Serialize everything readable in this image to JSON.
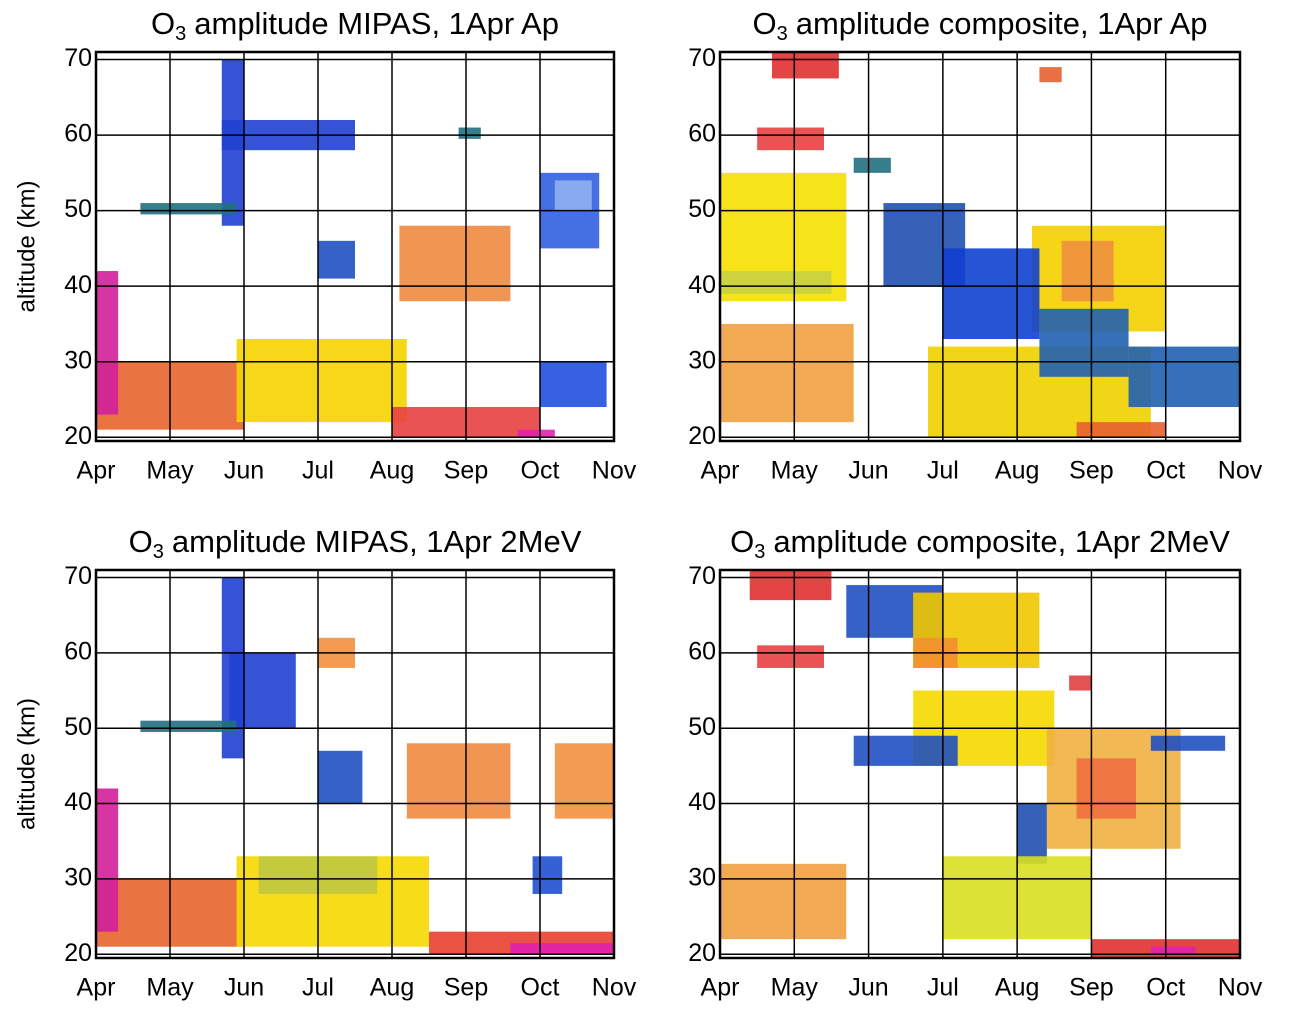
{
  "chart_data": [
    {
      "type": "heatmap",
      "title": [
        "O",
        "3",
        "amplitude MIPAS, 1Apr Ap"
      ],
      "ylabel": "altitude (km)",
      "xlim": [
        0,
        7
      ],
      "xticks": [
        {
          "value": 0,
          "label": "Apr"
        },
        {
          "value": 1,
          "label": "May"
        },
        {
          "value": 2,
          "label": "Jun"
        },
        {
          "value": 3,
          "label": "Jul"
        },
        {
          "value": 4,
          "label": "Aug"
        },
        {
          "value": 5,
          "label": "Sep"
        },
        {
          "value": 6,
          "label": "Oct"
        },
        {
          "value": 7,
          "label": "Nov"
        }
      ],
      "ylim": [
        19.5,
        71
      ],
      "yticks": [
        20,
        30,
        40,
        50,
        60,
        70
      ],
      "grid": true,
      "patches": [
        {
          "x": [
            0,
            2
          ],
          "y": [
            21,
            30
          ],
          "color": "#e8642e"
        },
        {
          "x": [
            1.9,
            4.2
          ],
          "y": [
            22,
            33
          ],
          "color": "#f5d400"
        },
        {
          "x": [
            0,
            0.3
          ],
          "y": [
            23,
            42
          ],
          "color": "#d0209a"
        },
        {
          "x": [
            4,
            6
          ],
          "y": [
            20,
            24
          ],
          "color": "#e84040"
        },
        {
          "x": [
            5.7,
            6.2
          ],
          "y": [
            20,
            21
          ],
          "color": "#e020b0"
        },
        {
          "x": [
            4.1,
            5.6
          ],
          "y": [
            38,
            48
          ],
          "color": "#f08a40"
        },
        {
          "x": [
            1.7,
            2
          ],
          "y": [
            48,
            70
          ],
          "color": "#2040d0"
        },
        {
          "x": [
            1.7,
            3.5
          ],
          "y": [
            58,
            62
          ],
          "color": "#2040d0"
        },
        {
          "x": [
            0.6,
            1.9
          ],
          "y": [
            49.5,
            51
          ],
          "color": "#207080"
        },
        {
          "x": [
            6,
            6.8
          ],
          "y": [
            45,
            55
          ],
          "color": "#3060e0"
        },
        {
          "x": [
            6.2,
            6.7
          ],
          "y": [
            50,
            54
          ],
          "color": "#90b0f0"
        },
        {
          "x": [
            6,
            6.9
          ],
          "y": [
            24,
            30
          ],
          "color": "#2050e0"
        },
        {
          "x": [
            3,
            3.5
          ],
          "y": [
            41,
            46
          ],
          "color": "#2050c0"
        },
        {
          "x": [
            4.9,
            5.2
          ],
          "y": [
            59.5,
            61
          ],
          "color": "#207080"
        }
      ]
    },
    {
      "type": "heatmap",
      "title": [
        "O",
        "3",
        "amplitude composite, 1Apr Ap"
      ],
      "xlim": [
        0,
        7
      ],
      "xticks": [
        {
          "value": 0,
          "label": "Apr"
        },
        {
          "value": 1,
          "label": "May"
        },
        {
          "value": 2,
          "label": "Jun"
        },
        {
          "value": 3,
          "label": "Jul"
        },
        {
          "value": 4,
          "label": "Aug"
        },
        {
          "value": 5,
          "label": "Sep"
        },
        {
          "value": 6,
          "label": "Oct"
        },
        {
          "value": 7,
          "label": "Nov"
        }
      ],
      "ylim": [
        19.5,
        71
      ],
      "yticks": [
        20,
        30,
        40,
        50,
        60,
        70
      ],
      "grid": true,
      "patches": [
        {
          "x": [
            0.7,
            1.6
          ],
          "y": [
            67.5,
            71
          ],
          "color": "#e03030"
        },
        {
          "x": [
            0.5,
            1.4
          ],
          "y": [
            58,
            61
          ],
          "color": "#e84040"
        },
        {
          "x": [
            4.3,
            4.6
          ],
          "y": [
            67,
            69
          ],
          "color": "#e86030"
        },
        {
          "x": [
            0,
            1.7
          ],
          "y": [
            38,
            55
          ],
          "color": "#f5e000"
        },
        {
          "x": [
            0,
            1.5
          ],
          "y": [
            39,
            42
          ],
          "color": "#c8d040"
        },
        {
          "x": [
            0,
            1.8
          ],
          "y": [
            22,
            35
          ],
          "color": "#f0a040"
        },
        {
          "x": [
            2.8,
            5.8
          ],
          "y": [
            20,
            32
          ],
          "color": "#f0d000"
        },
        {
          "x": [
            4.8,
            6
          ],
          "y": [
            20,
            22
          ],
          "color": "#e86030"
        },
        {
          "x": [
            4.2,
            6
          ],
          "y": [
            34,
            48
          ],
          "color": "#f5d000"
        },
        {
          "x": [
            4.6,
            5.3
          ],
          "y": [
            38,
            46
          ],
          "color": "#f09040"
        },
        {
          "x": [
            2.2,
            3.3
          ],
          "y": [
            40,
            51
          ],
          "color": "#2050b0"
        },
        {
          "x": [
            3,
            4.3
          ],
          "y": [
            33,
            45
          ],
          "color": "#1040d0"
        },
        {
          "x": [
            4.3,
            5.5
          ],
          "y": [
            28,
            37
          ],
          "color": "#2060b0"
        },
        {
          "x": [
            5.5,
            7
          ],
          "y": [
            24,
            32
          ],
          "color": "#2060b0"
        },
        {
          "x": [
            1.8,
            2.3
          ],
          "y": [
            55,
            57
          ],
          "color": "#207080"
        }
      ]
    },
    {
      "type": "heatmap",
      "title": [
        "O",
        "3",
        "amplitude MIPAS, 1Apr 2MeV"
      ],
      "ylabel": "altitude (km)",
      "xlim": [
        0,
        7
      ],
      "xticks": [
        {
          "value": 0,
          "label": "Apr"
        },
        {
          "value": 1,
          "label": "May"
        },
        {
          "value": 2,
          "label": "Jun"
        },
        {
          "value": 3,
          "label": "Jul"
        },
        {
          "value": 4,
          "label": "Aug"
        },
        {
          "value": 5,
          "label": "Sep"
        },
        {
          "value": 6,
          "label": "Oct"
        },
        {
          "value": 7,
          "label": "Nov"
        }
      ],
      "ylim": [
        19.5,
        71
      ],
      "yticks": [
        20,
        30,
        40,
        50,
        60,
        70
      ],
      "grid": true,
      "patches": [
        {
          "x": [
            0,
            2
          ],
          "y": [
            21,
            30
          ],
          "color": "#e8642e"
        },
        {
          "x": [
            1.9,
            4.5
          ],
          "y": [
            21,
            33
          ],
          "color": "#f5d800"
        },
        {
          "x": [
            2.2,
            3.8
          ],
          "y": [
            28,
            33
          ],
          "color": "#c0c840"
        },
        {
          "x": [
            0,
            0.3
          ],
          "y": [
            23,
            42
          ],
          "color": "#d0209a"
        },
        {
          "x": [
            4.5,
            7
          ],
          "y": [
            20,
            23
          ],
          "color": "#e84030"
        },
        {
          "x": [
            5.6,
            7
          ],
          "y": [
            20,
            21.5
          ],
          "color": "#e020b0"
        },
        {
          "x": [
            4.2,
            5.6
          ],
          "y": [
            38,
            48
          ],
          "color": "#f08a40"
        },
        {
          "x": [
            1.7,
            2
          ],
          "y": [
            46,
            70
          ],
          "color": "#2040d0"
        },
        {
          "x": [
            1.8,
            2.7
          ],
          "y": [
            50,
            60
          ],
          "color": "#2040d0"
        },
        {
          "x": [
            0.6,
            1.9
          ],
          "y": [
            49.5,
            51
          ],
          "color": "#207080"
        },
        {
          "x": [
            3,
            3.6
          ],
          "y": [
            40,
            47
          ],
          "color": "#2050c0"
        },
        {
          "x": [
            5.9,
            6.3
          ],
          "y": [
            28,
            33
          ],
          "color": "#2050d0"
        },
        {
          "x": [
            6.2,
            7
          ],
          "y": [
            38,
            48
          ],
          "color": "#f09040"
        },
        {
          "x": [
            3,
            3.5
          ],
          "y": [
            58,
            62
          ],
          "color": "#f09040"
        }
      ]
    },
    {
      "type": "heatmap",
      "title": [
        "O",
        "3",
        "amplitude composite, 1Apr 2MeV"
      ],
      "xlim": [
        0,
        7
      ],
      "xticks": [
        {
          "value": 0,
          "label": "Apr"
        },
        {
          "value": 1,
          "label": "May"
        },
        {
          "value": 2,
          "label": "Jun"
        },
        {
          "value": 3,
          "label": "Jul"
        },
        {
          "value": 4,
          "label": "Aug"
        },
        {
          "value": 5,
          "label": "Sep"
        },
        {
          "value": 6,
          "label": "Oct"
        },
        {
          "value": 7,
          "label": "Nov"
        }
      ],
      "ylim": [
        19.5,
        71
      ],
      "yticks": [
        20,
        30,
        40,
        50,
        60,
        70
      ],
      "grid": true,
      "patches": [
        {
          "x": [
            0.4,
            1.5
          ],
          "y": [
            67,
            71
          ],
          "color": "#e03030"
        },
        {
          "x": [
            0.5,
            1.4
          ],
          "y": [
            58,
            61
          ],
          "color": "#e84040"
        },
        {
          "x": [
            1.7,
            3
          ],
          "y": [
            62,
            69
          ],
          "color": "#2050c0"
        },
        {
          "x": [
            2.6,
            4.3
          ],
          "y": [
            58,
            68
          ],
          "color": "#f0c800"
        },
        {
          "x": [
            2.6,
            3.2
          ],
          "y": [
            58,
            62
          ],
          "color": "#f09030"
        },
        {
          "x": [
            2.6,
            4.5
          ],
          "y": [
            45,
            55
          ],
          "color": "#f5d800"
        },
        {
          "x": [
            1.8,
            3.2
          ],
          "y": [
            45,
            49
          ],
          "color": "#2050c0"
        },
        {
          "x": [
            4.4,
            6.2
          ],
          "y": [
            34,
            50
          ],
          "color": "#f0b040"
        },
        {
          "x": [
            4.8,
            5.6
          ],
          "y": [
            38,
            46
          ],
          "color": "#f07040"
        },
        {
          "x": [
            4,
            4.4
          ],
          "y": [
            32,
            40
          ],
          "color": "#2050b0"
        },
        {
          "x": [
            3,
            5
          ],
          "y": [
            22,
            33
          ],
          "color": "#d8e020"
        },
        {
          "x": [
            5,
            7
          ],
          "y": [
            19.5,
            22
          ],
          "color": "#e03030"
        },
        {
          "x": [
            5.8,
            6.4
          ],
          "y": [
            20,
            21
          ],
          "color": "#e020b0"
        },
        {
          "x": [
            0,
            1.7
          ],
          "y": [
            22,
            32
          ],
          "color": "#f0a040"
        },
        {
          "x": [
            5.8,
            6.8
          ],
          "y": [
            47,
            49
          ],
          "color": "#2050c0"
        },
        {
          "x": [
            4.7,
            5
          ],
          "y": [
            55,
            57
          ],
          "color": "#e04040"
        }
      ]
    }
  ]
}
